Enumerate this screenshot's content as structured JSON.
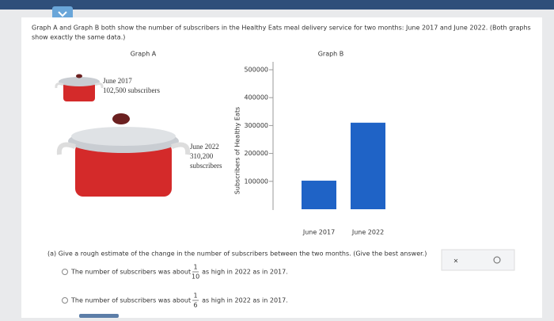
{
  "question": {
    "intro_line1": "Graph A and Graph B both show the number of subscribers in the Healthy Eats meal delivery service for two months: June 2017 and June 2022. (Both graphs",
    "intro_line2": "show exactly the same data.)"
  },
  "graph_a": {
    "title": "Graph A",
    "small_pot": {
      "date": "June 2017",
      "subscribers": "102,500 subscribers"
    },
    "large_pot": {
      "date": "June 2022",
      "value": "310,200",
      "unit": "subscribers"
    }
  },
  "graph_b": {
    "type": "bar",
    "title": "Graph B",
    "y_label": "Subscribers of Healthy Eats",
    "categories": [
      "June 2017",
      "June 2022"
    ],
    "values": [
      102500,
      310200
    ],
    "color": "#1f63c6",
    "ylim": [
      0,
      500000
    ],
    "yticks": [
      100000,
      200000,
      300000,
      400000,
      500000
    ]
  },
  "part_a": {
    "prompt": "(a) Give a rough estimate of the change in the number of subscribers between the two months. (Give the best answer.)",
    "options": [
      {
        "before": "The number of subscribers was about",
        "numerator": "1",
        "denominator": "10",
        "after": "as high in 2022 as in 2017."
      },
      {
        "before": "The number of subscribers was about",
        "numerator": "1",
        "denominator": "6",
        "after": "as high in 2022 as in 2017."
      }
    ]
  }
}
